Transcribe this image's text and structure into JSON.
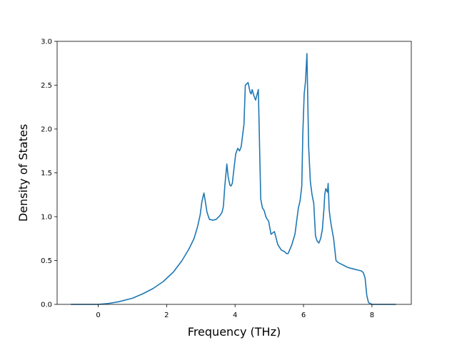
{
  "chart_data": {
    "type": "line",
    "title": "",
    "xlabel": "Frequency (THz)",
    "ylabel": "Density of States",
    "xlim": [
      -1.2,
      9.15
    ],
    "ylim": [
      0.0,
      3.0
    ],
    "grid": false,
    "legend": "none",
    "xticks": [
      0,
      2,
      4,
      6,
      8
    ],
    "xtick_labels": [
      "0",
      "2",
      "4",
      "6",
      "8"
    ],
    "yticks": [
      0.0,
      0.5,
      1.0,
      1.5,
      2.0,
      2.5,
      3.0
    ],
    "ytick_labels": [
      "0.0",
      "0.5",
      "1.0",
      "1.5",
      "2.0",
      "2.5",
      "3.0"
    ],
    "series": [
      {
        "color": "#1f77b4",
        "x": [
          -0.8,
          -0.5,
          0.0,
          0.3,
          0.6,
          1.0,
          1.3,
          1.6,
          1.9,
          2.2,
          2.45,
          2.65,
          2.8,
          2.9,
          2.98,
          3.03,
          3.06,
          3.09,
          3.12,
          3.18,
          3.25,
          3.35,
          3.45,
          3.55,
          3.62,
          3.66,
          3.7,
          3.76,
          3.8,
          3.85,
          3.88,
          3.92,
          3.96,
          4.02,
          4.08,
          4.13,
          4.18,
          4.22,
          4.26,
          4.3,
          4.38,
          4.44,
          4.47,
          4.5,
          4.55,
          4.6,
          4.68,
          4.75,
          4.8,
          4.85,
          4.9,
          4.94,
          4.98,
          5.05,
          5.15,
          5.25,
          5.35,
          5.45,
          5.5,
          5.55,
          5.65,
          5.75,
          5.8,
          5.85,
          5.9,
          5.95,
          5.98,
          6.02,
          6.06,
          6.1,
          6.15,
          6.2,
          6.25,
          6.3,
          6.35,
          6.4,
          6.45,
          6.5,
          6.55,
          6.6,
          6.62,
          6.65,
          6.7,
          6.72,
          6.75,
          6.78,
          6.82,
          6.88,
          6.95,
          7.0,
          7.1,
          7.2,
          7.3,
          7.4,
          7.5,
          7.6,
          7.7,
          7.75,
          7.8,
          7.85,
          7.9,
          8.0,
          8.3,
          8.7
        ],
        "y": [
          0.0,
          0.0,
          0.0,
          0.01,
          0.03,
          0.07,
          0.12,
          0.18,
          0.26,
          0.37,
          0.5,
          0.63,
          0.75,
          0.88,
          1.02,
          1.17,
          1.22,
          1.27,
          1.2,
          1.05,
          0.97,
          0.96,
          0.97,
          1.01,
          1.05,
          1.12,
          1.35,
          1.6,
          1.45,
          1.36,
          1.35,
          1.38,
          1.52,
          1.72,
          1.78,
          1.75,
          1.8,
          1.93,
          2.05,
          2.5,
          2.53,
          2.42,
          2.4,
          2.45,
          2.38,
          2.33,
          2.45,
          1.2,
          1.1,
          1.07,
          1.0,
          0.97,
          0.95,
          0.8,
          0.83,
          0.68,
          0.62,
          0.6,
          0.58,
          0.58,
          0.67,
          0.8,
          0.95,
          1.1,
          1.18,
          1.35,
          1.95,
          2.4,
          2.55,
          2.86,
          1.8,
          1.4,
          1.25,
          1.15,
          0.78,
          0.72,
          0.7,
          0.75,
          0.85,
          1.1,
          1.25,
          1.32,
          1.28,
          1.38,
          1.08,
          0.98,
          0.88,
          0.75,
          0.5,
          0.48,
          0.46,
          0.44,
          0.42,
          0.41,
          0.4,
          0.39,
          0.38,
          0.36,
          0.3,
          0.1,
          0.02,
          0.0,
          0.0,
          0.0
        ]
      }
    ]
  }
}
